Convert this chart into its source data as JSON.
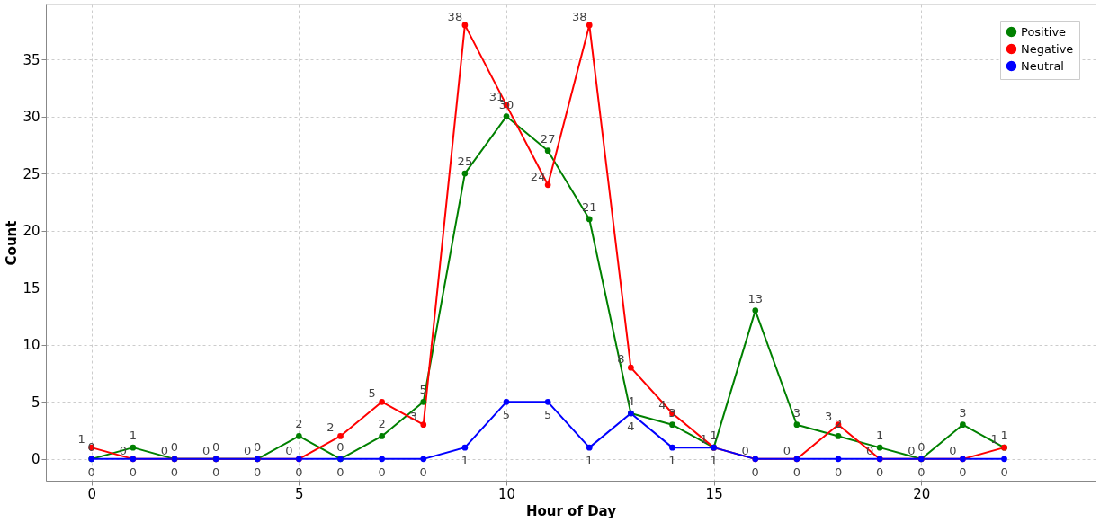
{
  "chart_data": {
    "type": "line",
    "xlabel": "Hour of Day",
    "ylabel": "Count",
    "x": [
      0,
      1,
      2,
      3,
      4,
      5,
      6,
      7,
      8,
      9,
      10,
      11,
      12,
      13,
      14,
      15,
      16,
      17,
      18,
      19,
      20,
      21,
      22
    ],
    "series": [
      {
        "name": "Positive",
        "color": "#008000",
        "values": [
          0,
          1,
          0,
          0,
          0,
          2,
          0,
          2,
          5,
          25,
          30,
          27,
          21,
          4,
          3,
          1,
          13,
          3,
          2,
          1,
          0,
          3,
          1
        ]
      },
      {
        "name": "Negative",
        "color": "#ff0000",
        "values": [
          1,
          0,
          0,
          0,
          0,
          0,
          2,
          5,
          3,
          38,
          31,
          24,
          38,
          8,
          4,
          1,
          0,
          0,
          3,
          0,
          0,
          0,
          1
        ]
      },
      {
        "name": "Neutral",
        "color": "#0000ff",
        "values": [
          0,
          0,
          0,
          0,
          0,
          0,
          0,
          0,
          0,
          1,
          5,
          5,
          1,
          4,
          1,
          1,
          0,
          0,
          0,
          0,
          0,
          0,
          0
        ]
      }
    ],
    "xlim": [
      -1.1,
      24.2
    ],
    "ylim": [
      -1.9,
      39.8
    ],
    "xticks": [
      0,
      5,
      10,
      15,
      20
    ],
    "yticks": [
      0,
      5,
      10,
      15,
      20,
      25,
      30,
      35
    ],
    "grid": true,
    "legend": "top right",
    "marker": "circle",
    "line_style": "solid",
    "data_labels": true
  }
}
